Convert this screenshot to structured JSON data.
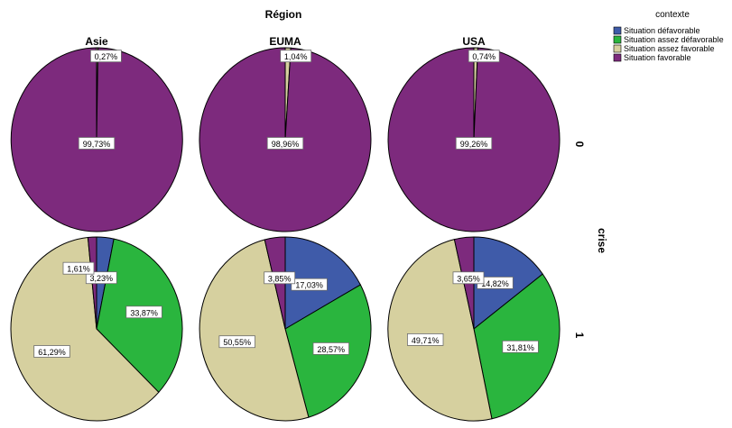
{
  "chart_data": {
    "type": "pie",
    "title": "Région",
    "row_axis_label": "crise",
    "columns": [
      "Asie",
      "EUMA",
      "USA"
    ],
    "rows": [
      "0",
      "1"
    ],
    "legend": {
      "title": "contexte",
      "placement": "top-right",
      "entries": [
        "Situation défavorable",
        "Situation assez défavorable",
        "Situation assez favorable",
        "Situation favorable"
      ]
    },
    "series_colors": [
      "#3f5ba9",
      "#2ab53e",
      "#d6d09f",
      "#7d2a7d"
    ],
    "panels": [
      {
        "column": "Asie",
        "row": "0",
        "values": [
          0,
          0,
          0.27,
          99.73
        ],
        "labels": [
          "",
          "",
          "0,27%",
          "99,73%"
        ]
      },
      {
        "column": "EUMA",
        "row": "0",
        "values": [
          0,
          0,
          1.04,
          98.96
        ],
        "labels": [
          "",
          "",
          "1,04%",
          "98,96%"
        ]
      },
      {
        "column": "USA",
        "row": "0",
        "values": [
          0,
          0,
          0.74,
          99.26
        ],
        "labels": [
          "",
          "",
          "0,74%",
          "99,26%"
        ]
      },
      {
        "column": "Asie",
        "row": "1",
        "values": [
          3.23,
          33.87,
          61.29,
          1.61
        ],
        "labels": [
          "3,23%",
          "33,87%",
          "61,29%",
          "1,61%"
        ]
      },
      {
        "column": "EUMA",
        "row": "1",
        "values": [
          17.03,
          28.57,
          50.55,
          3.85
        ],
        "labels": [
          "17,03%",
          "28,57%",
          "50,55%",
          "3,85%"
        ]
      },
      {
        "column": "USA",
        "row": "1",
        "values": [
          14.82,
          31.81,
          49.71,
          3.65
        ],
        "labels": [
          "14,82%",
          "31,81%",
          "49,71%",
          "3,65%"
        ]
      }
    ]
  }
}
